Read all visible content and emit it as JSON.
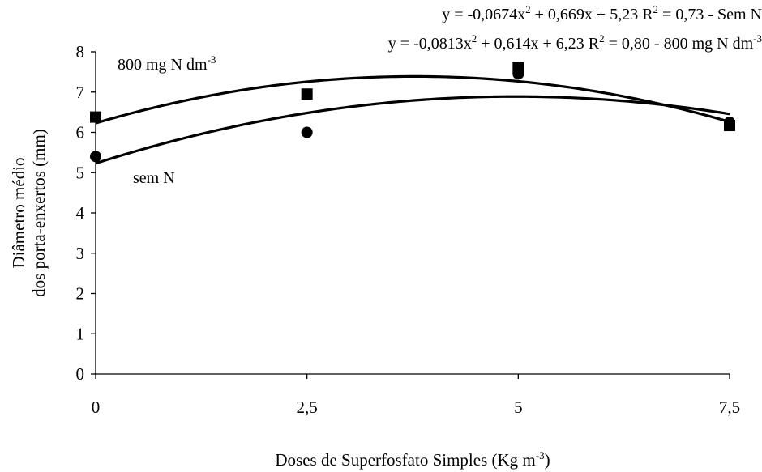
{
  "chart_data": {
    "type": "scatter",
    "title": "",
    "xlabel": "Doses de Superfosfato Simples (Kg m",
    "xlabel_sup": "-3",
    "xlabel_end": ")",
    "ylabel_line1": "Diâmetro médio",
    "ylabel_line2": "dos porta-enxertos (mm)",
    "xlim": [
      0,
      7.5
    ],
    "ylim": [
      0,
      8
    ],
    "x_ticks": [
      {
        "value": 0,
        "label": "0"
      },
      {
        "value": 2.5,
        "label": "2,5"
      },
      {
        "value": 5,
        "label": "5"
      },
      {
        "value": 7.5,
        "label": "7,5"
      }
    ],
    "y_ticks": [
      {
        "value": 0,
        "label": "0"
      },
      {
        "value": 1,
        "label": "1"
      },
      {
        "value": 2,
        "label": "2"
      },
      {
        "value": 3,
        "label": "3"
      },
      {
        "value": 4,
        "label": "4"
      },
      {
        "value": 5,
        "label": "5"
      },
      {
        "value": 6,
        "label": "6"
      },
      {
        "value": 7,
        "label": "7"
      },
      {
        "value": 8,
        "label": "8"
      }
    ],
    "grid": false,
    "legend": "none",
    "series": [
      {
        "marker": "square",
        "x": [
          0,
          2.5,
          5,
          7.5
        ],
        "y": [
          6.38,
          6.95,
          7.6,
          6.17
        ],
        "fit": {
          "a": -0.0813,
          "b": 0.614,
          "c": 6.23
        }
      },
      {
        "marker": "circle",
        "x": [
          0,
          2.5,
          5,
          7.5
        ],
        "y": [
          5.4,
          6.0,
          7.45,
          6.25
        ],
        "fit": {
          "a": -0.0674,
          "b": 0.669,
          "c": 5.23
        }
      }
    ],
    "annotations": {
      "eq_semN": {
        "p1": "y = -0,0674x",
        "p2": " + 0,669x + 5,23  R",
        "p3": " = 0,73  -  Sem N",
        "sup": "2"
      },
      "eq_800": {
        "p1": "y = -0,0813x",
        "p2": " + 0,614x + 6,23  R",
        "p3": " = 0,80  -  800 mg N dm",
        "sup": "2",
        "sup_end": "-3"
      },
      "label_800": {
        "text": "800 mg N dm",
        "sup": "-3"
      },
      "label_semN": "sem N"
    },
    "colors": {
      "line": "#000000",
      "marker": "#000000"
    }
  }
}
